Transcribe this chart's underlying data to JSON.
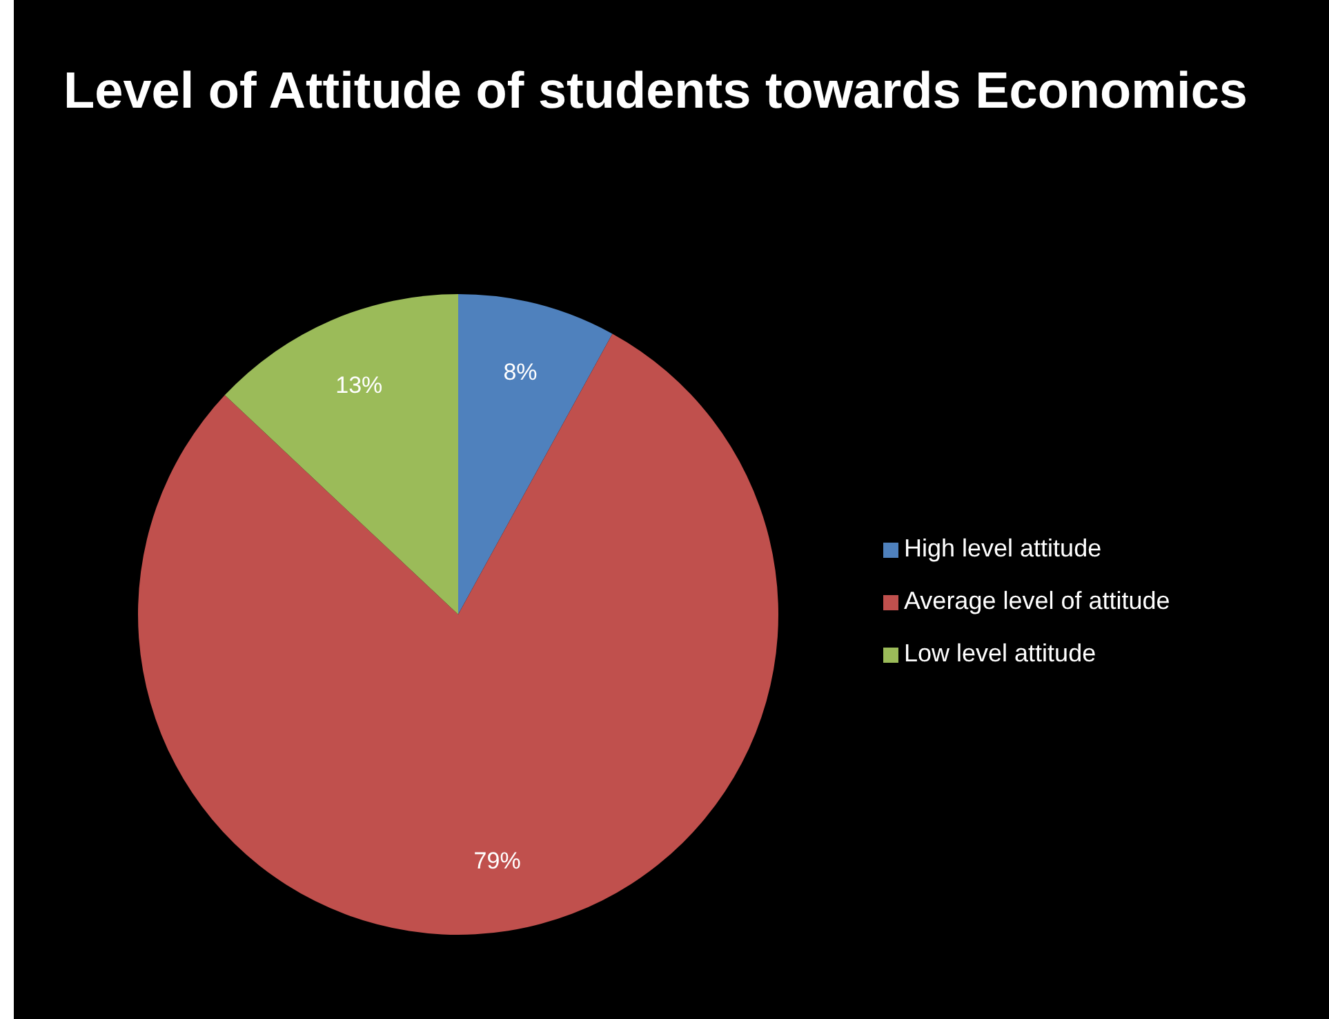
{
  "chart_data": {
    "type": "pie",
    "title": "Level of Attitude of students towards Economics",
    "categories": [
      "High level attitude",
      "Average level of attitude",
      "Low level attitude"
    ],
    "values": [
      8,
      79,
      13
    ],
    "colors": [
      "#4f81bd",
      "#c0504d",
      "#9bbb59"
    ],
    "value_labels": [
      "8%",
      "79%",
      "13%"
    ],
    "legend": "right"
  }
}
